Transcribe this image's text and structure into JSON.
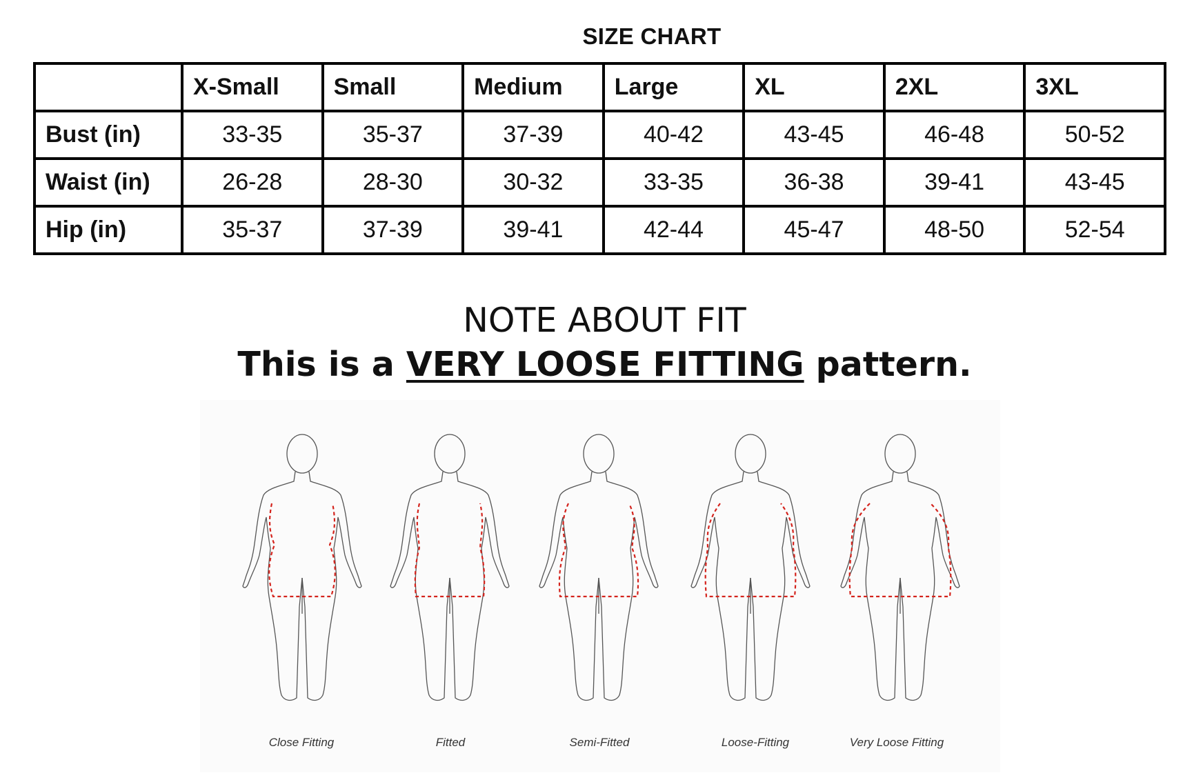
{
  "size_chart": {
    "title": "SIZE CHART",
    "columns": [
      "X-Small",
      "Small",
      "Medium",
      "Large",
      "XL",
      "2XL",
      "3XL"
    ],
    "rows": [
      {
        "label": "Bust (in)",
        "values": [
          "33-35",
          "35-37",
          "37-39",
          "40-42",
          "43-45",
          "46-48",
          "50-52"
        ]
      },
      {
        "label": "Waist (in)",
        "values": [
          "26-28",
          "28-30",
          "30-32",
          "33-35",
          "36-38",
          "39-41",
          "43-45"
        ]
      },
      {
        "label": "Hip (in)",
        "values": [
          "35-37",
          "37-39",
          "39-41",
          "42-44",
          "45-47",
          "48-50",
          "52-54"
        ]
      }
    ]
  },
  "note": {
    "title": "NOTE ABOUT FIT",
    "line_prefix": "This is a ",
    "line_emphasis": "VERY LOOSE FITTING",
    "line_suffix": " pattern."
  },
  "fit_figure": {
    "labels": [
      "Close Fitting",
      "Fitted",
      "Semi-Fitted",
      "Loose-Fitting",
      "Very Loose Fitting"
    ],
    "dash_color": "#d4231c",
    "outline_color": "#555555"
  }
}
